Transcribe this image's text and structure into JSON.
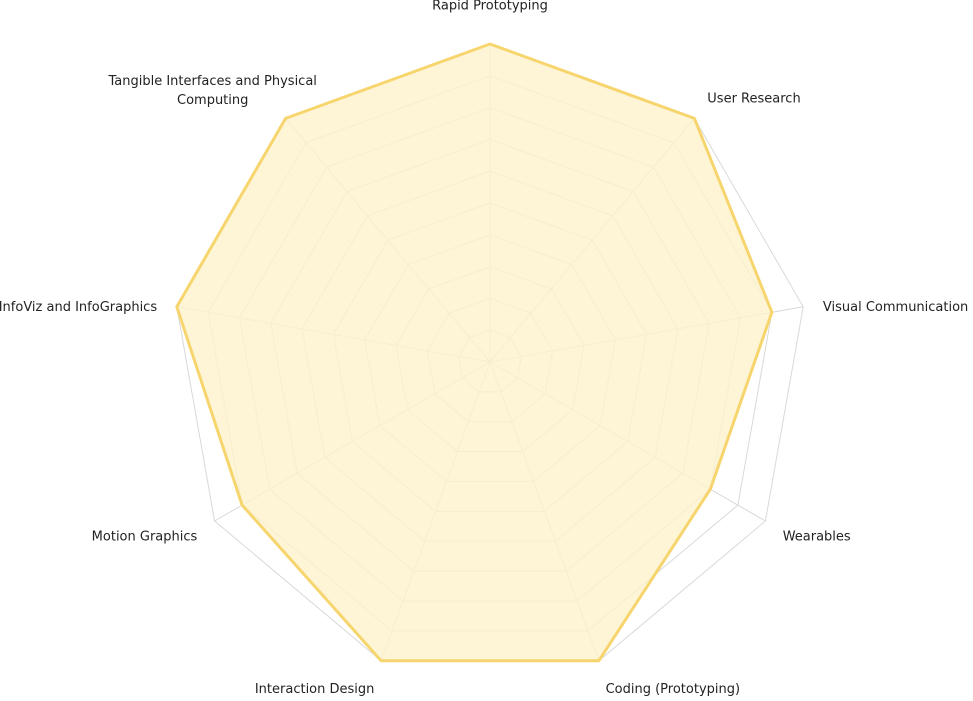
{
  "chart_data": {
    "type": "radar",
    "title": "",
    "categories": [
      "Rapid Prototyping",
      "User Research",
      "Visual Communication",
      "Wearables",
      "Coding (Prototyping)",
      "Interaction Design",
      "Motion Graphics",
      "InfoViz and InfoGraphics",
      "Tangible Interfaces and Physical Computing"
    ],
    "series": [
      {
        "values": [
          10,
          10,
          9,
          8,
          10,
          10,
          9,
          10,
          10
        ],
        "color": "#f7d56e"
      }
    ],
    "rmin": 0,
    "rmax": 10,
    "grid_levels": 10,
    "fill_color": "#fdf3cc",
    "grid_color": "#d9d9d9",
    "legend": "none"
  }
}
